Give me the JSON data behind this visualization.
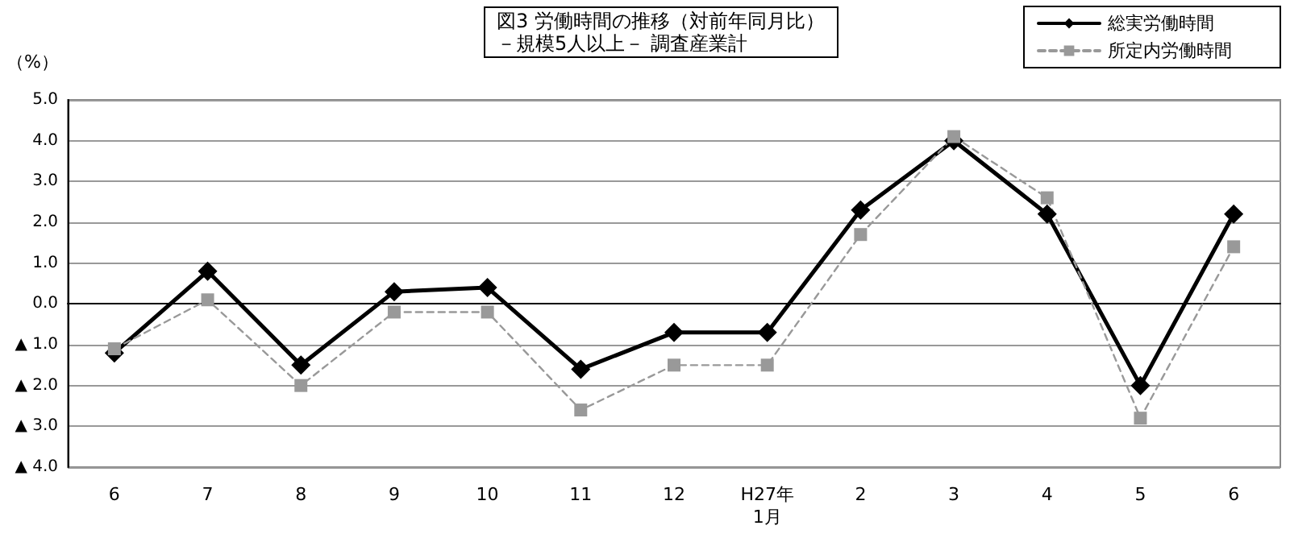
{
  "chart_data": {
    "type": "line",
    "title": "図3 労働時間の推移（対前年同月比）",
    "subtitle": "－規模5人以上－ 調査産業計",
    "ylabel": "（%）",
    "categories": [
      "6",
      "7",
      "8",
      "9",
      "10",
      "11",
      "12",
      "H27年\n1月",
      "2",
      "3",
      "4",
      "5",
      "6"
    ],
    "series": [
      {
        "name": "総実労働時間",
        "color": "#000000",
        "marker": "diamond",
        "line_style": "solid",
        "values": [
          -1.2,
          0.8,
          -1.5,
          0.3,
          0.4,
          -1.6,
          -0.7,
          -0.7,
          2.3,
          4.0,
          2.2,
          -2.0,
          2.2
        ]
      },
      {
        "name": "所定内労働時間",
        "color": "#999999",
        "marker": "square",
        "line_style": "dashed",
        "values": [
          -1.1,
          0.1,
          -2.0,
          -0.2,
          -0.2,
          -2.6,
          -1.5,
          -1.5,
          1.7,
          4.1,
          2.6,
          -2.8,
          1.4
        ]
      }
    ],
    "ylim": [
      -4,
      5
    ],
    "yticks": [
      {
        "value": 5,
        "label": "5.0"
      },
      {
        "value": 4,
        "label": "4.0"
      },
      {
        "value": 3,
        "label": "3.0"
      },
      {
        "value": 2,
        "label": "2.0"
      },
      {
        "value": 1,
        "label": "1.0"
      },
      {
        "value": 0,
        "label": "0.0"
      },
      {
        "value": -1,
        "label": "▲ 1.0"
      },
      {
        "value": -2,
        "label": "▲ 2.0"
      },
      {
        "value": -3,
        "label": "▲ 3.0"
      },
      {
        "value": -4,
        "label": "▲ 4.0"
      }
    ],
    "grid": "y",
    "legend": "top right"
  }
}
